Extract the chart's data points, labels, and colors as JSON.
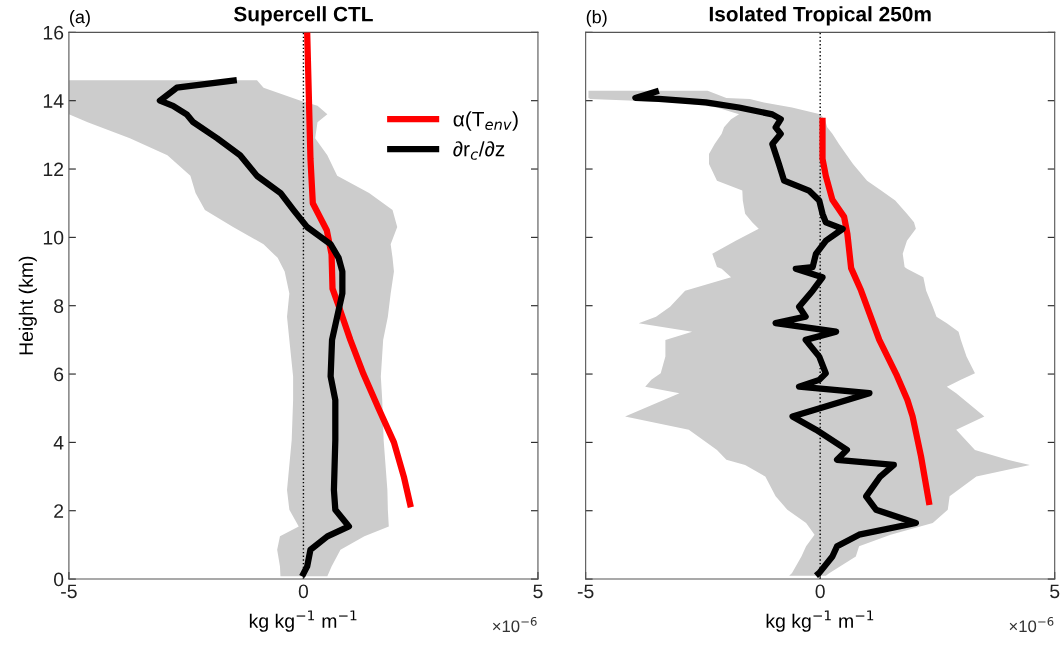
{
  "chart_data": [
    {
      "type": "line",
      "orientation": "horizontal",
      "title": "Supercell CTL",
      "xlabel": "kg kg$^{−1}$ m$^{−1}$",
      "ylabel": "Height (km)",
      "annotations": [
        "(a)",
        "×10$^{−6}$"
      ],
      "xlim": [
        -5,
        5
      ],
      "xticks": [
        -5,
        0,
        5
      ],
      "ylim": [
        0,
        16
      ],
      "yticks": [
        0,
        2,
        4,
        6,
        8,
        10,
        12,
        14,
        16
      ],
      "grid": false,
      "legend": "top right",
      "marker": "none",
      "line_style": "solid",
      "ref_lines": [
        {
          "axis": "x",
          "value": 0,
          "color": "#000000",
          "line_style": "dotted"
        }
      ],
      "series": [
        {
          "name": "α(T$_{env}$)",
          "color": "#ff0000",
          "x": [
            16,
            12.3,
            11,
            10.2,
            9.5,
            8.5,
            8,
            7,
            6,
            5,
            4,
            3,
            2.1
          ],
          "values": [
            0.08,
            0.15,
            0.2,
            0.5,
            0.6,
            0.62,
            0.75,
            1.0,
            1.28,
            1.6,
            1.93,
            2.14,
            2.29
          ]
        },
        {
          "name": "∂r$_{c}$/∂z",
          "color": "#000000",
          "x": [
            14.6,
            14.38,
            14.0,
            13.85,
            13.6,
            13.37,
            12.9,
            12.4,
            11.8,
            11.3,
            10.8,
            10.3,
            9.8,
            9.4,
            9.0,
            8.36,
            7.68,
            7.0,
            5.93,
            5.24,
            4.07,
            2.61,
            2.03,
            1.54,
            1.25,
            0.86,
            0.37,
            0.08
          ],
          "values": [
            -1.42,
            -2.7,
            -3.06,
            -2.78,
            -2.49,
            -2.35,
            -1.84,
            -1.35,
            -0.99,
            -0.49,
            -0.21,
            0.08,
            0.58,
            0.75,
            0.83,
            0.83,
            0.72,
            0.61,
            0.58,
            0.68,
            0.68,
            0.65,
            0.68,
            0.97,
            0.51,
            0.15,
            0.08,
            -0.03
          ],
          "lower": [
            -5,
            -5,
            -5,
            -5,
            -5,
            -4.6,
            -3.7,
            -2.9,
            -2.41,
            -2.3,
            -2.1,
            -1.5,
            -0.85,
            -0.55,
            -0.4,
            -0.3,
            -0.35,
            -0.3,
            -0.22,
            -0.22,
            -0.25,
            -0.35,
            -0.3,
            -0.1,
            -0.5,
            -0.56,
            -0.5,
            -0.49
          ],
          "upper": [
            -0.99,
            -0.85,
            -0.06,
            0.3,
            0.51,
            0.3,
            0.25,
            0.51,
            0.72,
            1.4,
            1.9,
            2.0,
            1.86,
            1.9,
            1.93,
            1.86,
            1.8,
            1.7,
            1.65,
            1.68,
            1.71,
            1.79,
            1.8,
            1.82,
            1.3,
            0.79,
            0.6,
            0.51
          ]
        }
      ]
    },
    {
      "type": "line",
      "orientation": "horizontal",
      "title": "Isolated Tropical 250m",
      "xlabel": "kg kg$^{−1}$ m$^{−1}$",
      "annotations": [
        "(b)",
        "×10$^{−6}$"
      ],
      "xlim": [
        -5,
        5
      ],
      "xticks": [
        -5,
        0,
        5
      ],
      "ylim": [
        0,
        16
      ],
      "yticks": [
        0,
        2,
        4,
        6,
        8,
        10,
        12,
        14,
        16
      ],
      "tick_labels": "x",
      "grid": false,
      "marker": "none",
      "line_style": "solid",
      "ref_lines": [
        {
          "axis": "x",
          "value": 0,
          "color": "#000000",
          "line_style": "dotted"
        }
      ],
      "series": [
        {
          "color": "#ff0000",
          "x": [
            13.5,
            12.3,
            11.8,
            11.1,
            10.6,
            10.1,
            9.1,
            8.45,
            7.0,
            6.0,
            5.24,
            4.76,
            3.59,
            2.17
          ],
          "values": [
            0.05,
            0.05,
            0.12,
            0.26,
            0.51,
            0.58,
            0.66,
            0.87,
            1.26,
            1.62,
            1.86,
            1.97,
            2.15,
            2.33
          ]
        },
        {
          "color": "#000000",
          "x": [
            14.29,
            14.08,
            14.05,
            13.95,
            13.8,
            13.6,
            13.46,
            13.22,
            13.03,
            12.73,
            12.44,
            12.15,
            11.66,
            11.37,
            11.08,
            10.69,
            10.44,
            10.25,
            9.9,
            9.52,
            9.13,
            9.08,
            8.83,
            8.44,
            7.97,
            7.68,
            7.49,
            7.24,
            7.0,
            6.51,
            6.02,
            5.83,
            5.63,
            5.44,
            4.76,
            4.37,
            3.78,
            3.49,
            3.34,
            3.0,
            2.42,
            2.03,
            1.64,
            1.3,
            0.96,
            0.66,
            0.18,
            0.1
          ],
          "values": [
            -3.44,
            -3.94,
            -3.44,
            -2.44,
            -1.73,
            -1.02,
            -0.84,
            -0.95,
            -0.84,
            -1.02,
            -0.95,
            -0.88,
            -0.77,
            -0.24,
            -0.02,
            0.05,
            0.12,
            0.48,
            0.12,
            -0.09,
            -0.16,
            -0.52,
            0.05,
            -0.16,
            -0.45,
            -0.31,
            -0.95,
            0.34,
            -0.31,
            -0.02,
            0.12,
            -0.02,
            -0.45,
            1.05,
            -0.59,
            -0.09,
            0.57,
            0.36,
            1.57,
            1.28,
            0.98,
            1.19,
            2.04,
            0.83,
            0.36,
            0.26,
            -0.02,
            -0.09
          ],
          "lower": [
            -4.94,
            -4.94,
            -4.9,
            -3.0,
            -2.2,
            -1.73,
            -1.9,
            -2.05,
            -2.1,
            -2.25,
            -2.37,
            -2.37,
            -2.2,
            -1.66,
            -1.65,
            -1.6,
            -1.45,
            -1.31,
            -1.8,
            -2.3,
            -2.2,
            -2.1,
            -1.9,
            -2.88,
            -3.2,
            -3.5,
            -3.87,
            -2.73,
            -3.3,
            -3.3,
            -3.4,
            -3.6,
            -3.73,
            -3.0,
            -4.16,
            -2.8,
            -2.2,
            -2.0,
            -1.6,
            -1.17,
            -0.95,
            -0.7,
            -0.3,
            -0.12,
            -0.3,
            -0.4,
            -0.6,
            -0.66
          ],
          "upper": [
            -2.4,
            -2.0,
            -1.5,
            -1.2,
            -0.6,
            0.0,
            0.1,
            0.15,
            0.26,
            0.4,
            0.55,
            0.7,
            1.0,
            1.3,
            1.6,
            1.85,
            2.0,
            2.04,
            1.85,
            1.76,
            1.8,
            1.85,
            2.2,
            2.26,
            2.4,
            2.48,
            2.7,
            2.95,
            3.0,
            3.12,
            3.3,
            3.0,
            2.7,
            2.9,
            3.5,
            2.9,
            3.3,
            4.0,
            4.47,
            3.33,
            2.76,
            2.72,
            2.4,
            1.5,
            0.83,
            0.76,
            0.2,
            0.12
          ]
        }
      ]
    }
  ]
}
